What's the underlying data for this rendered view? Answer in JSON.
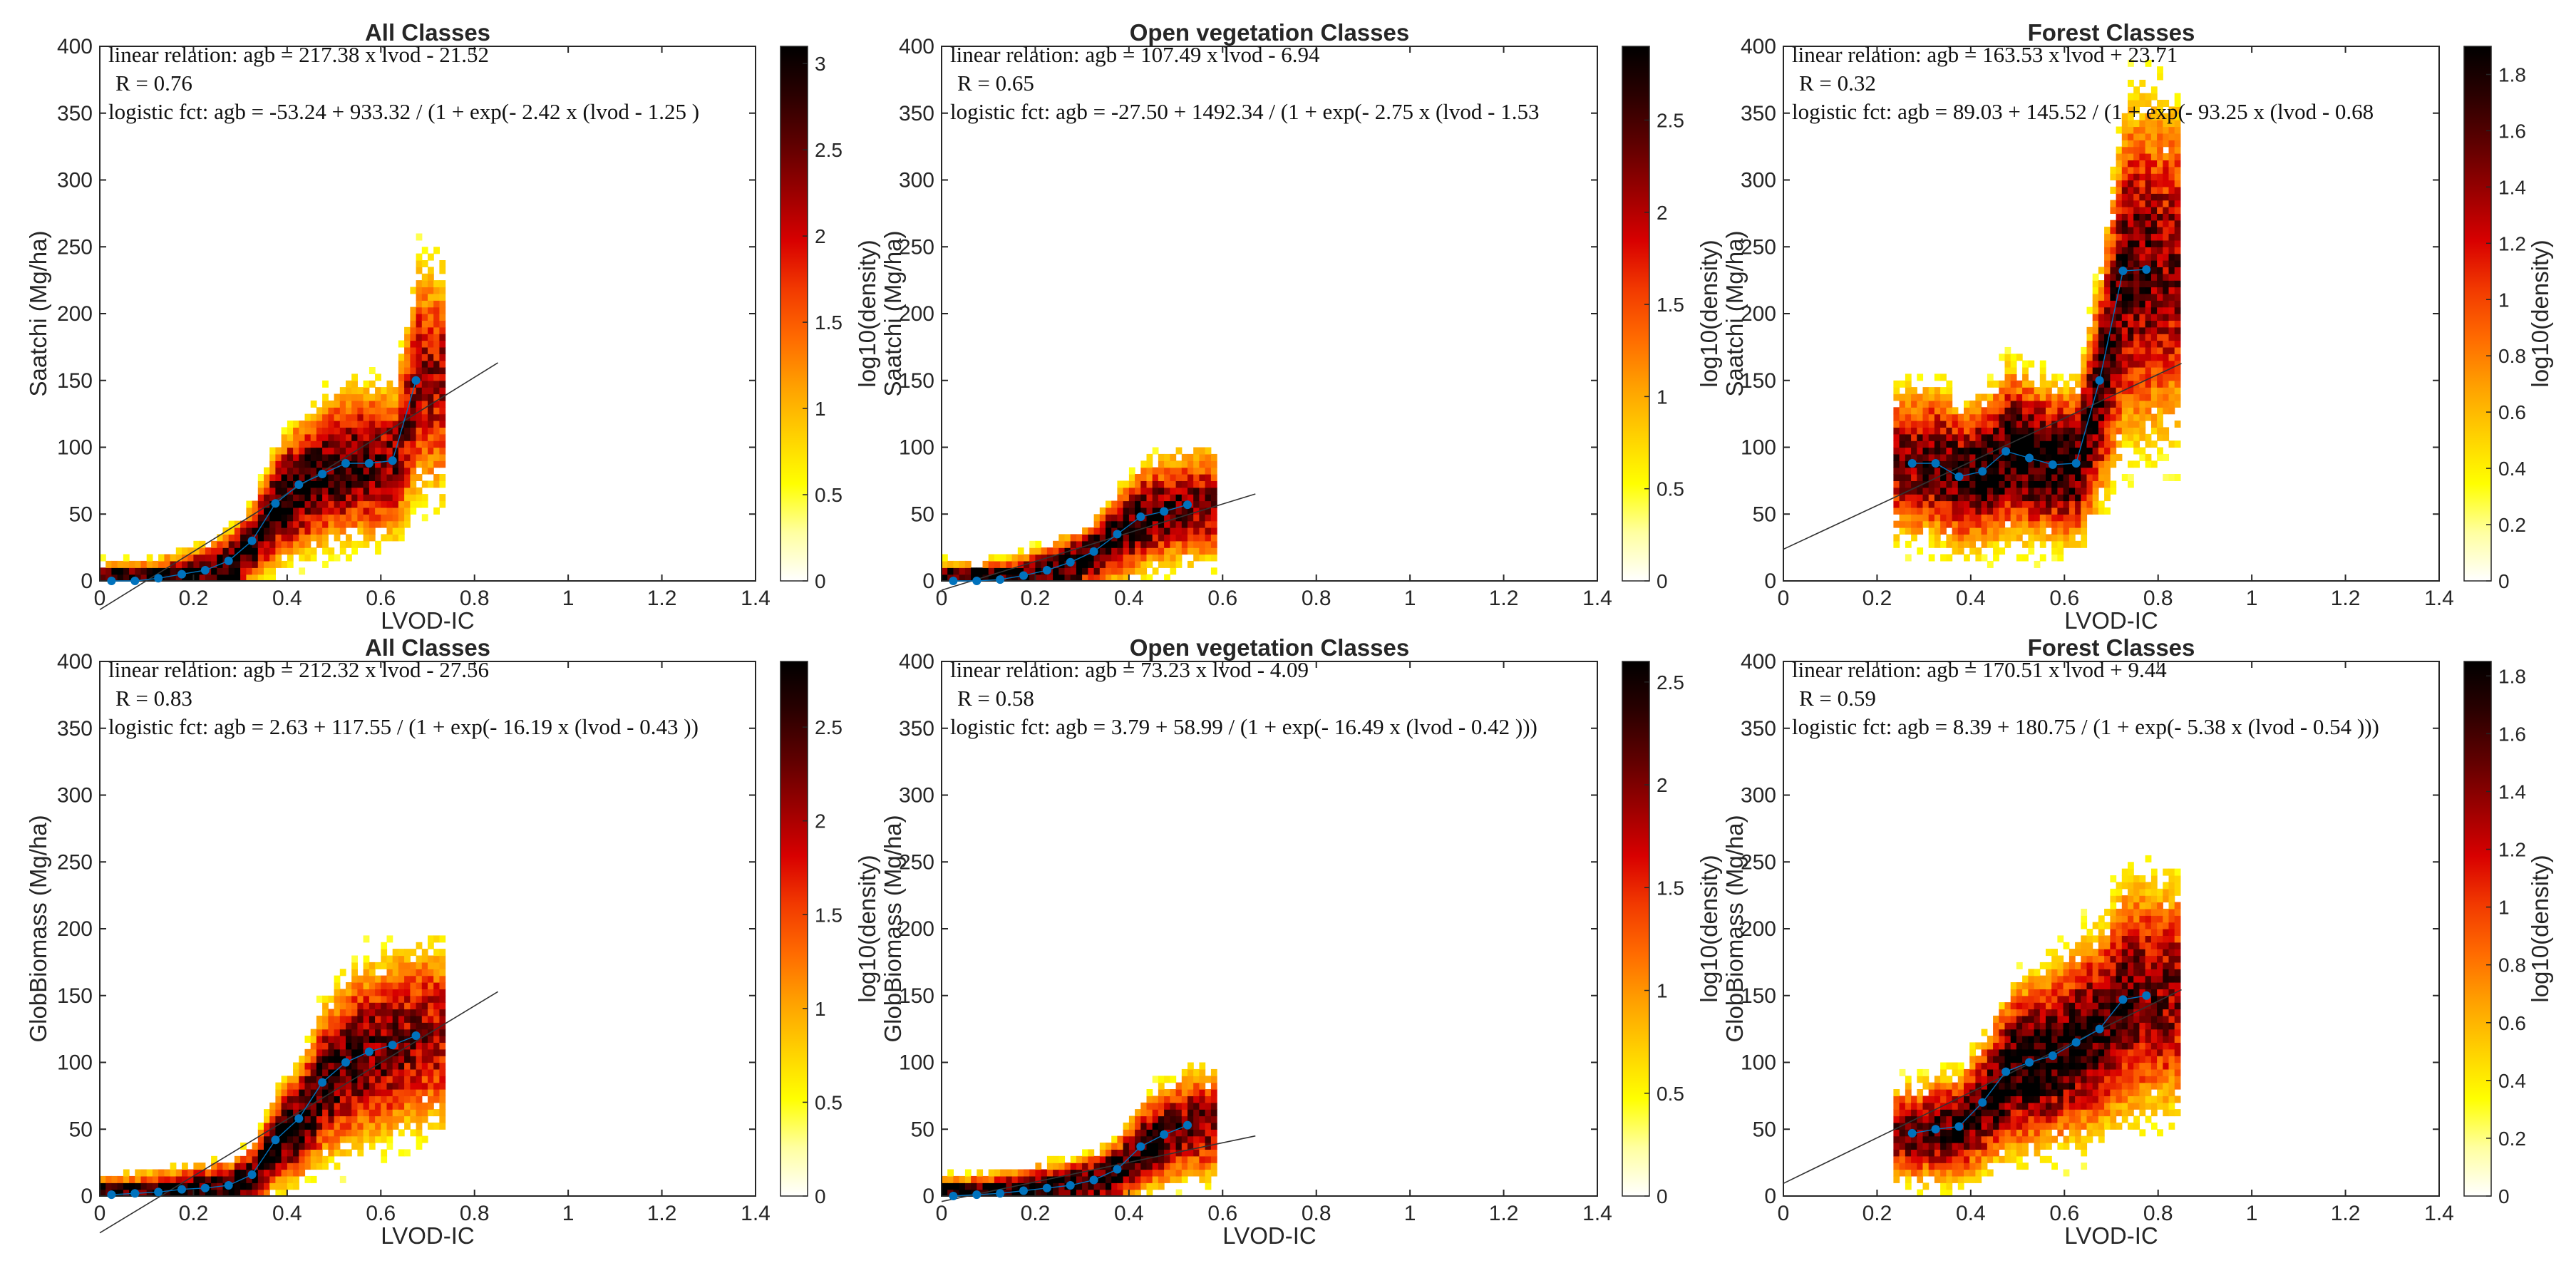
{
  "colormap": [
    "#ffffff",
    "#ffffa0",
    "#ffff00",
    "#ffd000",
    "#ffa000",
    "#ff6a00",
    "#f23a00",
    "#d80000",
    "#9a0000",
    "#5e0000",
    "#2a0000",
    "#000000"
  ],
  "fit_marker_color": "#0072bd",
  "chart_data": [
    {
      "type": "heatmap",
      "title": "All Classes",
      "xlabel": "LVOD-IC",
      "ylabel": "Saatchi (Mg/ha)",
      "xlim": [
        0,
        1.4
      ],
      "ylim": [
        0,
        400
      ],
      "xticks": [
        "0",
        "0.2",
        "0.4",
        "0.6",
        "0.8",
        "1",
        "1.2",
        "1.4"
      ],
      "yticks": [
        "0",
        "50",
        "100",
        "150",
        "200",
        "250",
        "300",
        "350",
        "400"
      ],
      "colorbar_label": "",
      "colorbar_max": 3.1,
      "colorbar_ticks": [
        "0",
        "0.5",
        "1",
        "1.5",
        "2",
        "2.5",
        "3"
      ],
      "annotations": {
        "linear": "linear relation: agb = 217.38 x lvod - 21.52",
        "r": "R = 0.76",
        "logistic": "logistic fct: agb = -53.24 + 933.32 / (1 + exp(- 2.42 x (lvod - 1.25 )"
      },
      "linear_fit": {
        "slope": 217.38,
        "intercept": -21.52,
        "x_range": [
          0,
          0.85
        ]
      },
      "binned_means": {
        "x": [
          0.025,
          0.075,
          0.125,
          0.175,
          0.225,
          0.275,
          0.325,
          0.375,
          0.425,
          0.475,
          0.525,
          0.575,
          0.625,
          0.675
        ],
        "y": [
          0,
          0,
          2,
          5,
          8,
          15,
          30,
          58,
          72,
          80,
          88,
          88,
          90,
          150
        ]
      }
    },
    {
      "type": "heatmap",
      "title": "Open      vegetation Classes",
      "xlabel": "",
      "ylabel": "log10(density)\nSaatchi (Mg/ha)",
      "xlim": [
        0,
        1.4
      ],
      "ylim": [
        0,
        400
      ],
      "xticks": [
        "0",
        "0.2",
        "0.4",
        "0.6",
        "0.8",
        "1",
        "1.2",
        "1.4"
      ],
      "yticks": [
        "0",
        "50",
        "100",
        "150",
        "200",
        "250",
        "300",
        "350",
        "400"
      ],
      "colorbar_label": "",
      "colorbar_max": 2.9,
      "colorbar_ticks": [
        "0",
        "0.5",
        "1",
        "1.5",
        "2",
        "2.5"
      ],
      "annotations": {
        "linear": "linear relation: agb = 107.49 x lvod - 6.94",
        "r": "R = 0.65",
        "logistic": "logistic fct: agb = -27.50 + 1492.34 / (1 + exp(- 2.75 x (lvod - 1.53"
      },
      "linear_fit": {
        "slope": 107.49,
        "intercept": -6.94,
        "x_range": [
          0,
          0.67
        ]
      },
      "binned_means": {
        "x": [
          0.025,
          0.075,
          0.125,
          0.175,
          0.225,
          0.275,
          0.325,
          0.375,
          0.425,
          0.475,
          0.525
        ],
        "y": [
          0,
          0,
          1,
          4,
          8,
          14,
          22,
          35,
          48,
          52,
          57
        ]
      }
    },
    {
      "type": "heatmap",
      "title": "Forest Classes",
      "xlabel": "LVOD-IC",
      "ylabel": "log10(density)\nSaatchi (Mg/ha)",
      "xlim": [
        0,
        1.4
      ],
      "ylim": [
        0,
        400
      ],
      "xticks": [
        "0",
        "0.2",
        "0.4",
        "0.6",
        "0.8",
        "1",
        "1.2",
        "1.4"
      ],
      "yticks": [
        "0",
        "50",
        "100",
        "150",
        "200",
        "250",
        "300",
        "350",
        "400"
      ],
      "colorbar_label": "log10(density)",
      "colorbar_max": 1.9,
      "colorbar_ticks": [
        "0",
        "0.2",
        "0.4",
        "0.6",
        "0.8",
        "1",
        "1.2",
        "1.4",
        "1.6",
        "1.8"
      ],
      "annotations": {
        "linear": "linear relation: agb = 163.53 x lvod + 23.71",
        "r": "R = 0.32",
        "logistic": "logistic fct: agb = 89.03 + 145.52 / (1 + exp(- 93.25 x (lvod - 0.68"
      },
      "linear_fit": {
        "slope": 163.53,
        "intercept": 23.71,
        "x_range": [
          0,
          0.85
        ]
      },
      "binned_means": {
        "x": [
          0.275,
          0.325,
          0.375,
          0.425,
          0.475,
          0.525,
          0.575,
          0.625,
          0.675,
          0.725,
          0.775
        ],
        "y": [
          88,
          88,
          78,
          82,
          97,
          92,
          87,
          88,
          150,
          232,
          233
        ]
      }
    },
    {
      "type": "heatmap",
      "title": "All Classes",
      "xlabel": "LVOD-IC",
      "ylabel": "GlobBiomass (Mg/ha)",
      "xlim": [
        0,
        1.4
      ],
      "ylim": [
        0,
        400
      ],
      "xticks": [
        "0",
        "0.2",
        "0.4",
        "0.6",
        "0.8",
        "1",
        "1.2",
        "1.4"
      ],
      "yticks": [
        "0",
        "50",
        "100",
        "150",
        "200",
        "250",
        "300",
        "350",
        "400"
      ],
      "colorbar_label": "",
      "colorbar_max": 2.85,
      "colorbar_ticks": [
        "0",
        "0.5",
        "1",
        "1.5",
        "2",
        "2.5"
      ],
      "annotations": {
        "linear": "linear relation: agb = 212.32 x lvod - 27.56",
        "r": "R = 0.83",
        "logistic": "logistic fct: agb = 2.63 + 117.55 / (1 + exp(- 16.19 x (lvod - 0.43 ))"
      },
      "linear_fit": {
        "slope": 212.32,
        "intercept": -27.56,
        "x_range": [
          0,
          0.85
        ]
      },
      "binned_means": {
        "x": [
          0.025,
          0.075,
          0.125,
          0.175,
          0.225,
          0.275,
          0.325,
          0.375,
          0.425,
          0.475,
          0.525,
          0.575,
          0.625,
          0.675
        ],
        "y": [
          1,
          2,
          3,
          5,
          6,
          8,
          16,
          42,
          58,
          85,
          100,
          108,
          113,
          120
        ]
      }
    },
    {
      "type": "heatmap",
      "title": "Open      vegetation Classes",
      "xlabel": "LVOD-IC",
      "ylabel": "log10(density)\nGlobBiomass (Mg/ha)",
      "xlim": [
        0,
        1.4
      ],
      "ylim": [
        0,
        400
      ],
      "xticks": [
        "0",
        "0.2",
        "0.4",
        "0.6",
        "0.8",
        "1",
        "1.2",
        "1.4"
      ],
      "yticks": [
        "0",
        "50",
        "100",
        "150",
        "200",
        "250",
        "300",
        "350",
        "400"
      ],
      "colorbar_label": "",
      "colorbar_max": 2.6,
      "colorbar_ticks": [
        "0",
        "0.5",
        "1",
        "1.5",
        "2",
        "2.5"
      ],
      "annotations": {
        "linear": "linear relation: agb = 73.23 x lvod - 4.09",
        "r": "R = 0.58",
        "logistic": "logistic fct: agb = 3.79 + 58.99 / (1 + exp(- 16.49 x (lvod - 0.42 )))"
      },
      "linear_fit": {
        "slope": 73.23,
        "intercept": -4.09,
        "x_range": [
          0,
          0.67
        ]
      },
      "binned_means": {
        "x": [
          0.025,
          0.075,
          0.125,
          0.175,
          0.225,
          0.275,
          0.325,
          0.375,
          0.425,
          0.475,
          0.525
        ],
        "y": [
          0,
          1,
          2,
          4,
          6,
          8,
          12,
          20,
          37,
          46,
          53
        ]
      }
    },
    {
      "type": "heatmap",
      "title": "Forest Classes",
      "xlabel": "LVOD-IC",
      "ylabel": "log10(density)\nGlobBiomass (Mg/ha)",
      "xlim": [
        0,
        1.4
      ],
      "ylim": [
        0,
        400
      ],
      "xticks": [
        "0",
        "0.2",
        "0.4",
        "0.6",
        "0.8",
        "1",
        "1.2",
        "1.4"
      ],
      "yticks": [
        "0",
        "50",
        "100",
        "150",
        "200",
        "250",
        "300",
        "350",
        "400"
      ],
      "colorbar_label": "log10(density)",
      "colorbar_max": 1.85,
      "colorbar_ticks": [
        "0",
        "0.2",
        "0.4",
        "0.6",
        "0.8",
        "1",
        "1.2",
        "1.4",
        "1.6",
        "1.8"
      ],
      "annotations": {
        "linear": "linear relation: agb = 170.51 x lvod + 9.44",
        "r": "R = 0.59",
        "logistic": "logistic fct: agb = 8.39 + 180.75 / (1 + exp(- 5.38 x (lvod - 0.54 )))"
      },
      "linear_fit": {
        "slope": 170.51,
        "intercept": 9.44,
        "x_range": [
          0,
          0.85
        ]
      },
      "binned_means": {
        "x": [
          0.275,
          0.325,
          0.375,
          0.425,
          0.475,
          0.525,
          0.575,
          0.625,
          0.675,
          0.725,
          0.775
        ],
        "y": [
          47,
          50,
          52,
          70,
          93,
          100,
          105,
          115,
          125,
          147,
          150
        ]
      }
    }
  ]
}
